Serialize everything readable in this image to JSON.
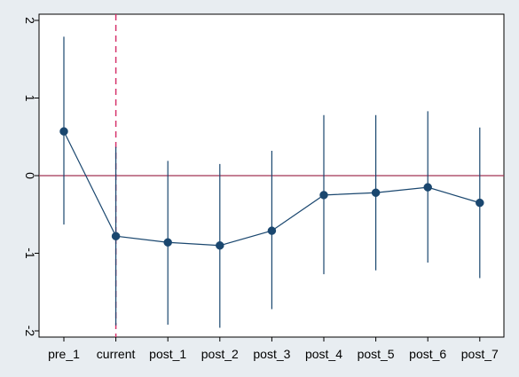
{
  "chart_data": {
    "type": "scatter",
    "subtype": "coefficient-plot-with-confidence-intervals",
    "title": "",
    "xlabel": "",
    "ylabel": "",
    "categories": [
      "pre_1",
      "current",
      "post_1",
      "post_2",
      "post_3",
      "post_4",
      "post_5",
      "post_6",
      "post_7"
    ],
    "series": [
      {
        "values": [
          0.57,
          -0.78,
          -0.86,
          -0.9,
          -0.71,
          -0.25,
          -0.22,
          -0.15,
          -0.35
        ],
        "ci_lower": [
          -0.63,
          -1.93,
          -1.92,
          -1.96,
          -1.72,
          -1.27,
          -1.22,
          -1.12,
          -1.32
        ],
        "ci_upper": [
          1.79,
          0.37,
          0.19,
          0.15,
          0.32,
          0.78,
          0.78,
          0.83,
          0.62
        ]
      }
    ],
    "ylim": [
      -2.08,
      2.08
    ],
    "yticks": [
      -2,
      -1,
      0,
      1,
      2
    ],
    "reference_lines": {
      "horizontal_at_y": 0,
      "vertical_at_category": "current"
    },
    "grid": false,
    "legend": "none",
    "colors": {
      "background": "#e8edf1",
      "plot_area": "#ffffff",
      "marker": "#1a476f",
      "connecting_line": "#1a476f",
      "ci_line": "#1a476f",
      "zero_line": "#a23454",
      "vertical_dashed_line": "#d6336c"
    }
  }
}
